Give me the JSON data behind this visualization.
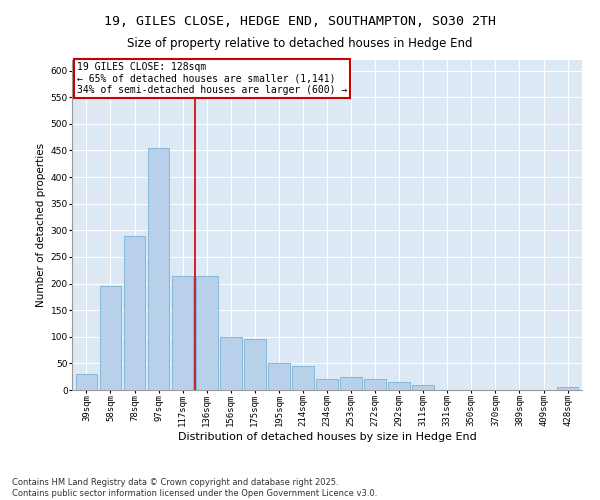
{
  "title1": "19, GILES CLOSE, HEDGE END, SOUTHAMPTON, SO30 2TH",
  "title2": "Size of property relative to detached houses in Hedge End",
  "xlabel": "Distribution of detached houses by size in Hedge End",
  "ylabel": "Number of detached properties",
  "categories": [
    "39sqm",
    "58sqm",
    "78sqm",
    "97sqm",
    "117sqm",
    "136sqm",
    "156sqm",
    "175sqm",
    "195sqm",
    "214sqm",
    "234sqm",
    "253sqm",
    "272sqm",
    "292sqm",
    "311sqm",
    "331sqm",
    "350sqm",
    "370sqm",
    "389sqm",
    "409sqm",
    "428sqm"
  ],
  "values": [
    30,
    195,
    290,
    455,
    215,
    215,
    100,
    95,
    50,
    45,
    20,
    25,
    20,
    15,
    10,
    0,
    0,
    0,
    0,
    0,
    5
  ],
  "bar_color": "#b8d0ea",
  "bar_edge_color": "#7aafd4",
  "red_line_x": 4.5,
  "annotation_title": "19 GILES CLOSE: 128sqm",
  "annotation_line1": "← 65% of detached houses are smaller (1,141)",
  "annotation_line2": "34% of semi-detached houses are larger (600) →",
  "annotation_box_color": "#ffffff",
  "annotation_box_edge": "#cc0000",
  "red_line_color": "#cc0000",
  "bg_color": "#dce9f5",
  "fig_bg_color": "#ffffff",
  "footer1": "Contains HM Land Registry data © Crown copyright and database right 2025.",
  "footer2": "Contains public sector information licensed under the Open Government Licence v3.0.",
  "ylim": [
    0,
    620
  ],
  "yticks": [
    0,
    50,
    100,
    150,
    200,
    250,
    300,
    350,
    400,
    450,
    500,
    550,
    600
  ],
  "title1_fontsize": 9.5,
  "title2_fontsize": 8.5,
  "xlabel_fontsize": 8,
  "ylabel_fontsize": 7.5,
  "tick_fontsize": 6.5,
  "footer_fontsize": 6,
  "ann_fontsize": 7
}
